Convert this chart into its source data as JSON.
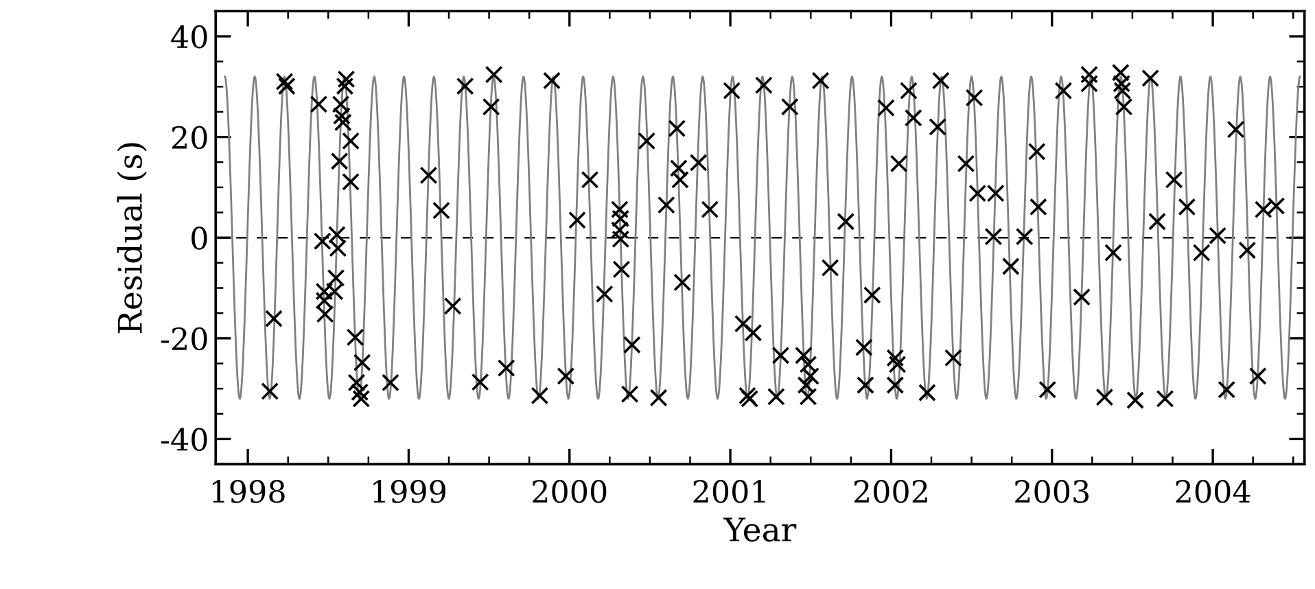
{
  "chart_data": {
    "type": "scatter",
    "xlabel": "Year",
    "ylabel": "Residual (s)",
    "xlim": [
      1997.8,
      2004.57
    ],
    "ylim": [
      -45,
      45
    ],
    "xticks": [
      1998,
      1999,
      2000,
      2001,
      2002,
      2003,
      2004
    ],
    "yticks": [
      -40,
      -20,
      0,
      20,
      40
    ],
    "grid": false,
    "legend": false,
    "ref_lines": [
      {
        "axis": "y",
        "value": 0,
        "line_style": "dashed",
        "color": "#000000"
      }
    ],
    "series": [
      {
        "type": "line",
        "color": "#808080",
        "marker": "none",
        "line_style": "solid",
        "x": [
          1997.857,
          1997.95,
          1998.043,
          1998.136,
          1998.228,
          1998.321,
          1998.414,
          1998.507,
          1998.6,
          1998.693,
          1998.786,
          1998.878,
          1998.971,
          1999.064,
          1999.157,
          1999.25,
          1999.343,
          1999.435,
          1999.528,
          1999.621,
          1999.714,
          1999.807,
          1999.9,
          1999.993,
          2000.085,
          2000.178,
          2000.271,
          2000.364,
          2000.457,
          2000.55,
          2000.643,
          2000.736,
          2000.828,
          2000.921,
          2001.014,
          2001.107,
          2001.2,
          2001.292,
          2001.385,
          2001.478,
          2001.571,
          2001.664,
          2001.757,
          2001.85,
          2001.942,
          2002.035,
          2002.128,
          2002.221,
          2002.314,
          2002.407,
          2002.5,
          2002.592,
          2002.685,
          2002.778,
          2002.871,
          2002.964,
          2003.057,
          2003.149,
          2003.242,
          2003.335,
          2003.428,
          2003.521,
          2003.614,
          2003.707,
          2003.799,
          2003.892,
          2003.985,
          2004.078,
          2004.171,
          2004.264,
          2004.356,
          2004.449,
          2004.542
        ],
        "values": [
          32,
          -32,
          32,
          -32,
          32,
          -32,
          32,
          -32,
          32,
          -32,
          32,
          -32,
          32,
          -32,
          32,
          -32,
          32,
          -32,
          32,
          -32,
          32,
          -32,
          32,
          -32,
          32,
          -32,
          32,
          -32,
          32,
          -32,
          32,
          -32,
          32,
          -32,
          32,
          -32,
          32,
          -32,
          32,
          -32,
          32,
          -32,
          32,
          -32,
          32,
          -32,
          32,
          -32,
          32,
          -32,
          32,
          -32,
          32,
          -32,
          32,
          -32,
          32,
          -32,
          32,
          -32,
          32,
          -32,
          32,
          -32,
          32,
          -32,
          32,
          -32,
          32,
          -32,
          32,
          -32,
          32
        ]
      },
      {
        "type": "scatter",
        "color": "#000000",
        "marker": "cross",
        "x": [
          1998.162,
          1998.137,
          1998.228,
          1998.242,
          1998.441,
          1998.464,
          1998.475,
          1998.475,
          1998.48,
          1998.554,
          1998.56,
          1998.548,
          1998.54,
          1998.612,
          1998.603,
          1998.578,
          1998.584,
          1998.592,
          1998.57,
          1998.64,
          1998.64,
          1998.668,
          1998.711,
          1998.676,
          1998.696,
          1998.705,
          1998.887,
          1999.124,
          1999.203,
          1999.274,
          1999.351,
          1999.445,
          1999.53,
          1999.513,
          1999.607,
          1999.815,
          1999.89,
          1999.977,
          2000.048,
          2000.127,
          2000.218,
          2000.312,
          2000.318,
          2000.312,
          2000.318,
          2000.323,
          2000.389,
          2000.375,
          2000.48,
          2000.554,
          2000.602,
          2000.668,
          2000.679,
          2000.688,
          2000.702,
          2000.802,
          2000.873,
          2001.009,
          2001.08,
          2001.142,
          2001.106,
          2001.12,
          2001.208,
          2001.313,
          2001.285,
          2001.37,
          2001.456,
          2001.484,
          2001.499,
          2001.471,
          2001.484,
          2001.561,
          2001.621,
          2001.718,
          2001.831,
          2001.882,
          2001.84,
          2001.968,
          2002.025,
          2002.039,
          2002.025,
          2002.048,
          2002.109,
          2002.138,
          2002.289,
          2002.309,
          2002.224,
          2002.386,
          2002.465,
          2002.517,
          2002.537,
          2002.65,
          2002.636,
          2002.744,
          2002.829,
          2002.906,
          2002.915,
          2002.972,
          2003.071,
          2003.185,
          2003.232,
          2003.232,
          2003.327,
          2003.381,
          2003.427,
          2003.433,
          2003.438,
          2003.447,
          2003.518,
          2003.612,
          2003.703,
          2003.654,
          2003.759,
          2003.839,
          2003.93,
          2004.03,
          2004.086,
          2004.143,
          2004.214,
          2004.28,
          2004.314,
          2004.394
        ],
        "values": [
          -16.1,
          -30.5,
          31.0,
          30.1,
          26.5,
          -0.7,
          -10.7,
          -12.5,
          -15.2,
          0.6,
          -2.1,
          -8.0,
          -10.7,
          31.5,
          30.1,
          26.5,
          24.2,
          22.9,
          15.2,
          19.2,
          11.1,
          -19.8,
          -24.8,
          -28.8,
          -30.7,
          -32.0,
          -28.8,
          12.4,
          5.4,
          -13.6,
          30.1,
          -28.7,
          32.4,
          26.0,
          -25.9,
          -31.4,
          31.2,
          -27.5,
          3.5,
          11.5,
          -11.2,
          5.6,
          3.8,
          1.5,
          -0.3,
          -6.3,
          -21.3,
          -31.1,
          19.2,
          -31.8,
          6.5,
          21.7,
          13.8,
          11.5,
          -8.9,
          14.9,
          5.6,
          29.2,
          -17.1,
          -18.9,
          -31.4,
          -32.0,
          30.3,
          -23.4,
          -31.6,
          26.0,
          -23.4,
          -25.2,
          -27.5,
          -29.3,
          -31.6,
          31.2,
          -6.0,
          3.2,
          -21.8,
          -11.4,
          -29.3,
          25.8,
          -23.9,
          -25.2,
          -29.3,
          14.7,
          29.2,
          23.8,
          22.0,
          31.2,
          -30.8,
          -23.9,
          14.7,
          27.8,
          8.8,
          8.8,
          0.2,
          -5.7,
          0.2,
          17.1,
          6.1,
          -30.2,
          29.2,
          -11.8,
          32.4,
          30.6,
          -31.7,
          -3.0,
          32.8,
          30.6,
          29.2,
          26.0,
          -32.3,
          31.7,
          -32.0,
          3.2,
          11.5,
          6.1,
          -3.0,
          0.4,
          -30.2,
          21.5,
          -2.5,
          -27.5,
          5.6,
          6.3
        ]
      }
    ]
  }
}
